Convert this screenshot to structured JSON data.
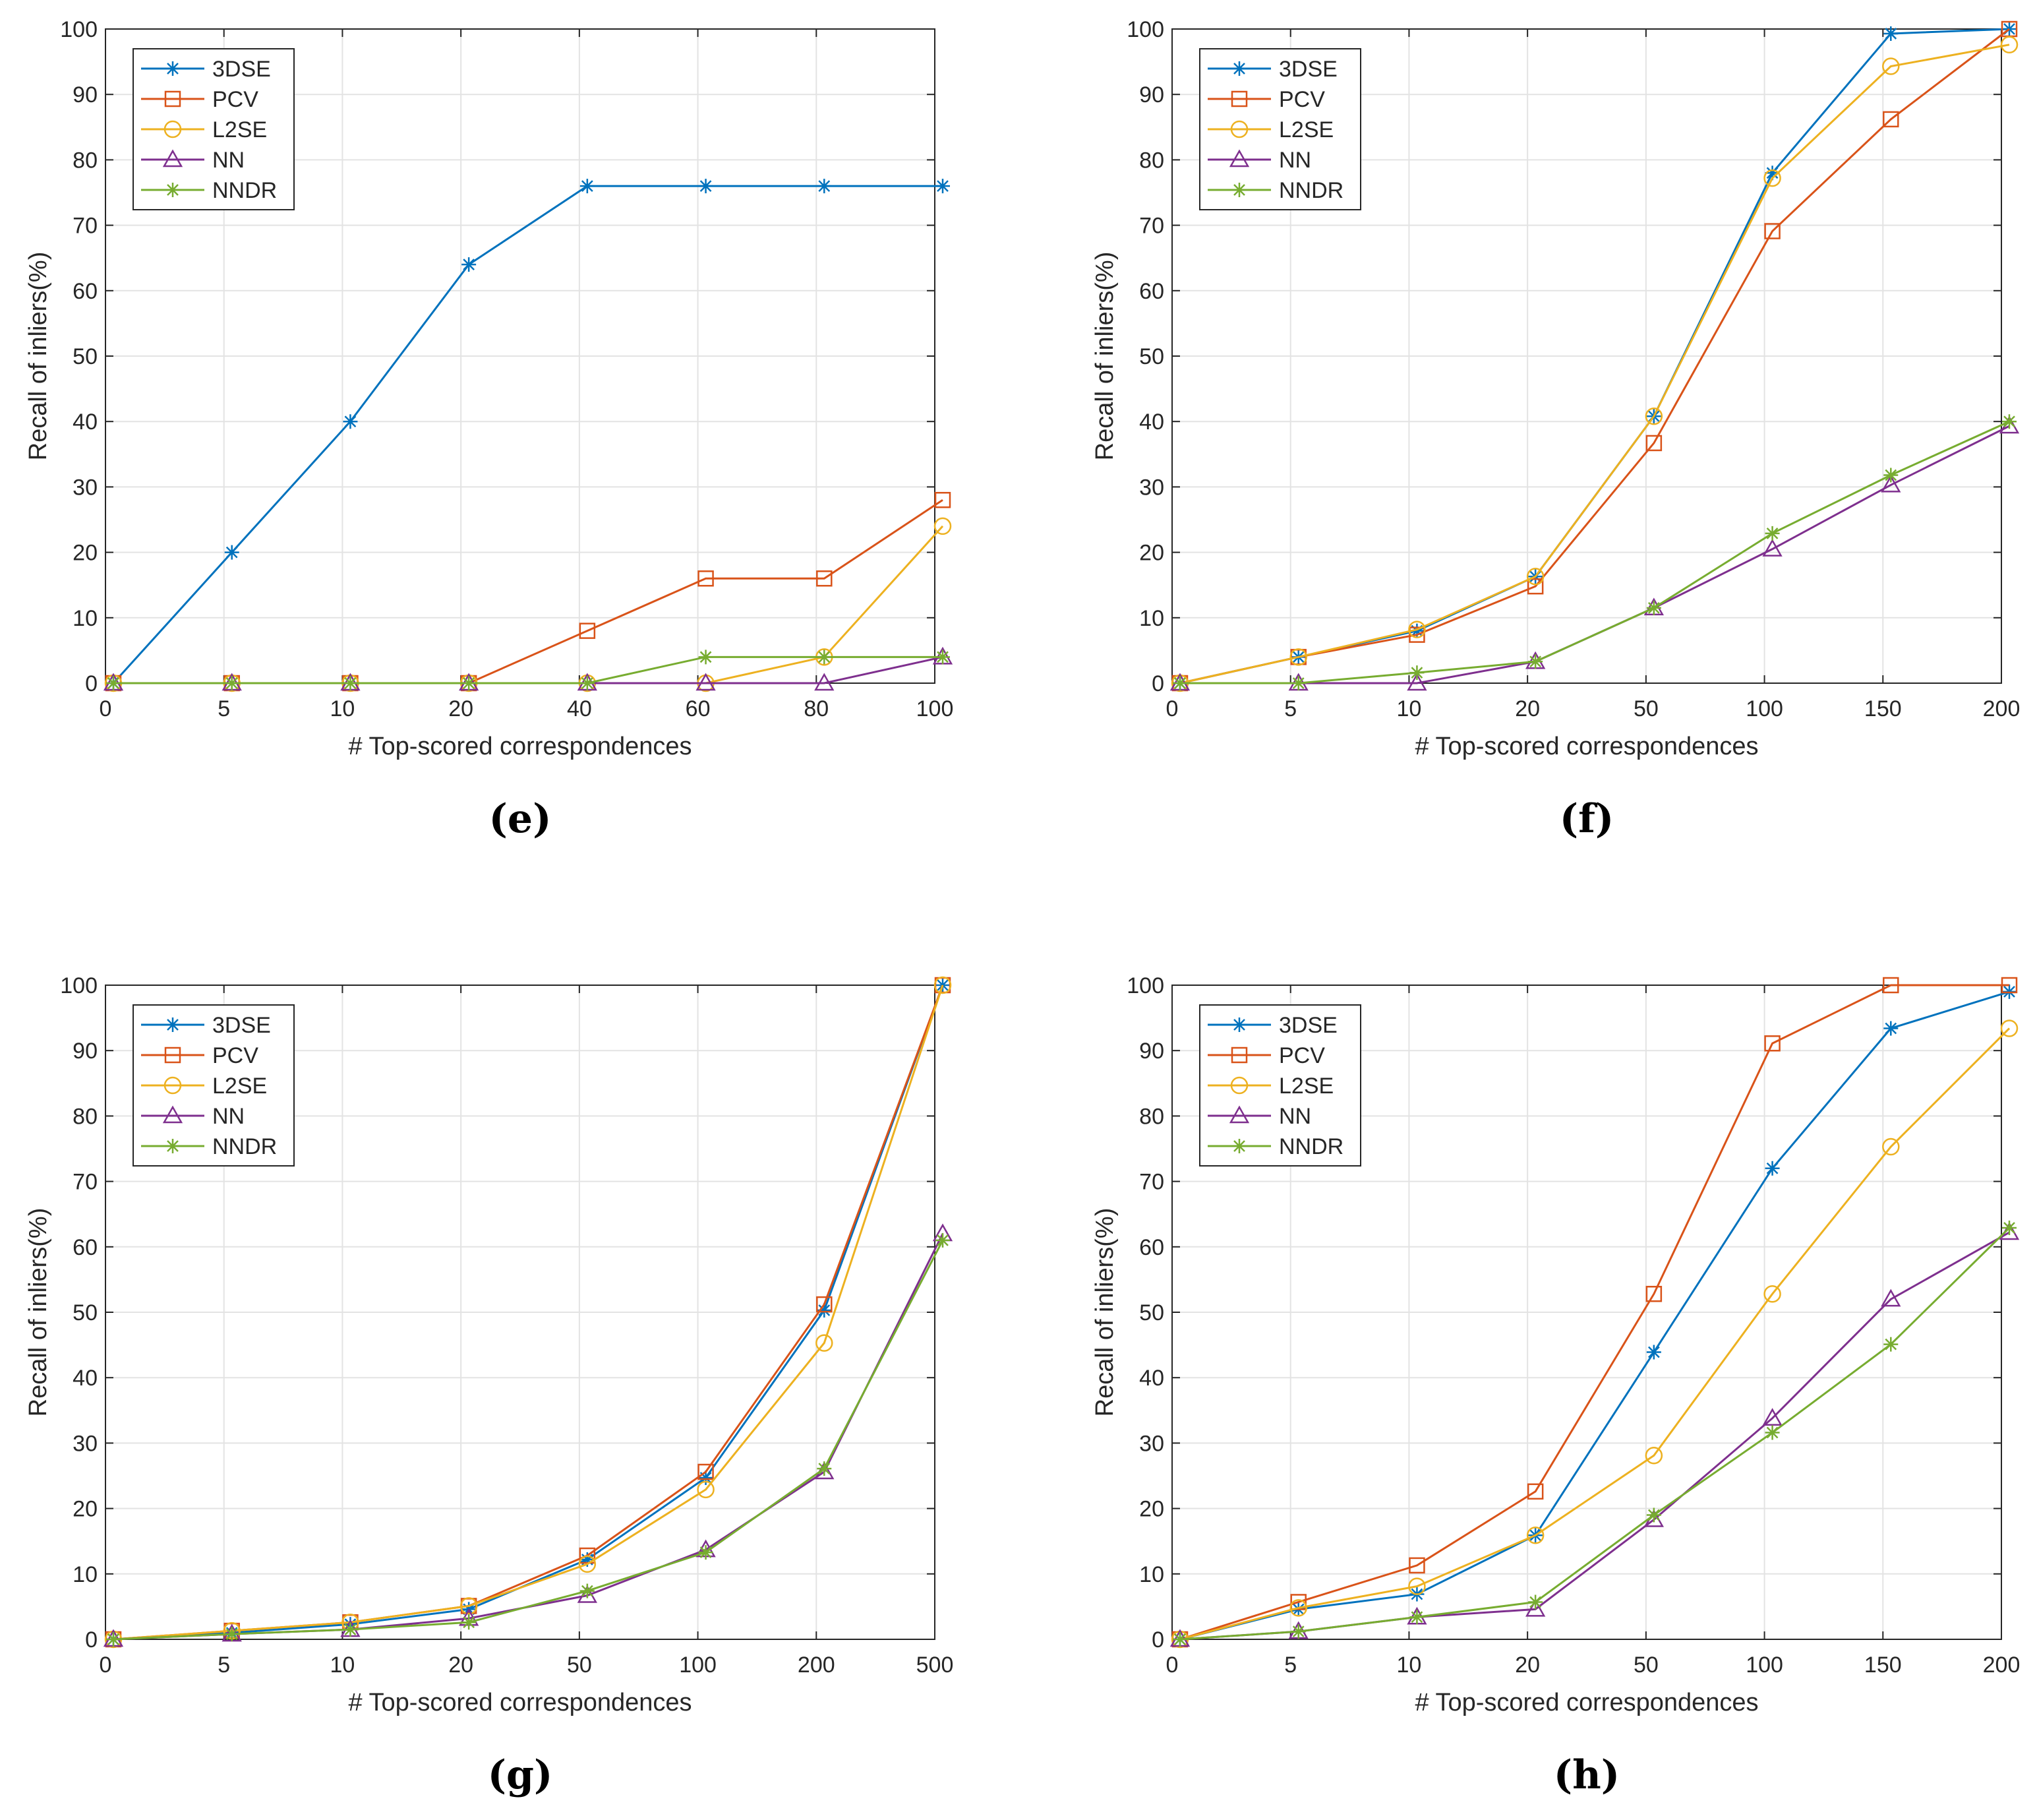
{
  "colors": {
    "3DSE": "#0072bd",
    "PCV": "#d95319",
    "L2SE": "#edb120",
    "NN": "#7e2f8e",
    "NNDR": "#77ac30",
    "grid": "#e3e3e3",
    "axis": "#262626"
  },
  "chart_data": [
    {
      "type": "line",
      "caption": "(e)",
      "xlabel": "# Top-scored correspondences",
      "ylabel": "Recall of inliers(%)",
      "categories": [
        "0",
        "5",
        "10",
        "20",
        "40",
        "60",
        "80",
        "100"
      ],
      "ylim": [
        0,
        100
      ],
      "yticks": [
        0,
        10,
        20,
        30,
        40,
        50,
        60,
        70,
        80,
        90,
        100
      ],
      "grid": true,
      "legend": "top-left",
      "series": [
        {
          "name": "3DSE",
          "marker": "star",
          "values": [
            0,
            20,
            40,
            64,
            76,
            76,
            76,
            76
          ]
        },
        {
          "name": "PCV",
          "marker": "square",
          "values": [
            0,
            0,
            0,
            0,
            8,
            16,
            16,
            28
          ]
        },
        {
          "name": "L2SE",
          "marker": "circle",
          "values": [
            0,
            0,
            0,
            0,
            0,
            0,
            4,
            24
          ]
        },
        {
          "name": "NN",
          "marker": "triangle",
          "values": [
            0,
            0,
            0,
            0,
            0,
            0,
            0,
            4
          ]
        },
        {
          "name": "NNDR",
          "marker": "star",
          "values": [
            0,
            0,
            0,
            0,
            0,
            4,
            4,
            4
          ]
        }
      ]
    },
    {
      "type": "line",
      "caption": "(f)",
      "xlabel": "# Top-scored correspondences",
      "ylabel": "Recall of inliers(%)",
      "categories": [
        "0",
        "5",
        "10",
        "20",
        "50",
        "100",
        "150",
        "200"
      ],
      "ylim": [
        0,
        100
      ],
      "yticks": [
        0,
        10,
        20,
        30,
        40,
        50,
        60,
        70,
        80,
        90,
        100
      ],
      "grid": true,
      "legend": "top-left",
      "series": [
        {
          "name": "3DSE",
          "marker": "star",
          "values": [
            0,
            4,
            8,
            16.3,
            40.8,
            78,
            99.3,
            100
          ]
        },
        {
          "name": "PCV",
          "marker": "square",
          "values": [
            0,
            4,
            7.4,
            14.8,
            36.7,
            69.1,
            86.2,
            100
          ]
        },
        {
          "name": "L2SE",
          "marker": "circle",
          "values": [
            0,
            4,
            8.2,
            16.3,
            40.8,
            77.2,
            94.3,
            97.6
          ]
        },
        {
          "name": "NN",
          "marker": "triangle",
          "values": [
            0,
            0,
            0,
            3.3,
            11.5,
            20.5,
            30.3,
            39.3
          ]
        },
        {
          "name": "NNDR",
          "marker": "star",
          "values": [
            0,
            0,
            1.6,
            3.3,
            11.5,
            22.9,
            31.8,
            40
          ]
        }
      ]
    },
    {
      "type": "line",
      "caption": "(g)",
      "xlabel": "# Top-scored correspondences",
      "ylabel": "Recall of inliers(%)",
      "categories": [
        "0",
        "5",
        "10",
        "20",
        "50",
        "100",
        "200",
        "500"
      ],
      "ylim": [
        0,
        100
      ],
      "yticks": [
        0,
        10,
        20,
        30,
        40,
        50,
        60,
        70,
        80,
        90,
        100
      ],
      "grid": true,
      "legend": "top-left",
      "series": [
        {
          "name": "3DSE",
          "marker": "star",
          "values": [
            0,
            1,
            2.3,
            4.6,
            12.2,
            24.7,
            50.3,
            100
          ]
        },
        {
          "name": "PCV",
          "marker": "square",
          "values": [
            0,
            1.3,
            2.6,
            5.1,
            12.8,
            25.6,
            51.2,
            100
          ]
        },
        {
          "name": "L2SE",
          "marker": "circle",
          "values": [
            0,
            1.3,
            2.6,
            5.1,
            11.5,
            22.9,
            45.3,
            100
          ]
        },
        {
          "name": "NN",
          "marker": "triangle",
          "values": [
            0,
            0.8,
            1.5,
            3.2,
            6.7,
            13.7,
            25.6,
            62
          ]
        },
        {
          "name": "NNDR",
          "marker": "star",
          "values": [
            0,
            0.8,
            1.5,
            2.6,
            7.4,
            13.3,
            26.1,
            61
          ]
        }
      ]
    },
    {
      "type": "line",
      "caption": "(h)",
      "xlabel": "# Top-scored correspondences",
      "ylabel": "Recall of inliers(%)",
      "categories": [
        "0",
        "5",
        "10",
        "20",
        "50",
        "100",
        "150",
        "200"
      ],
      "ylim": [
        0,
        100
      ],
      "yticks": [
        0,
        10,
        20,
        30,
        40,
        50,
        60,
        70,
        80,
        90,
        100
      ],
      "grid": true,
      "legend": "top-left",
      "series": [
        {
          "name": "3DSE",
          "marker": "star",
          "values": [
            0,
            4.6,
            6.9,
            15.9,
            43.9,
            72,
            93.4,
            99
          ]
        },
        {
          "name": "PCV",
          "marker": "square",
          "values": [
            0,
            5.7,
            11.3,
            22.6,
            52.8,
            91.1,
            100,
            100
          ]
        },
        {
          "name": "L2SE",
          "marker": "circle",
          "values": [
            0,
            4.8,
            8.1,
            15.9,
            28.1,
            52.8,
            75.3,
            93.4
          ]
        },
        {
          "name": "NN",
          "marker": "triangle",
          "values": [
            0,
            1.2,
            3.4,
            4.6,
            18.3,
            33.8,
            52,
            62.2
          ]
        },
        {
          "name": "NNDR",
          "marker": "star",
          "values": [
            0,
            1.2,
            3.4,
            5.7,
            19,
            31.6,
            45.1,
            62.9
          ]
        }
      ]
    }
  ]
}
